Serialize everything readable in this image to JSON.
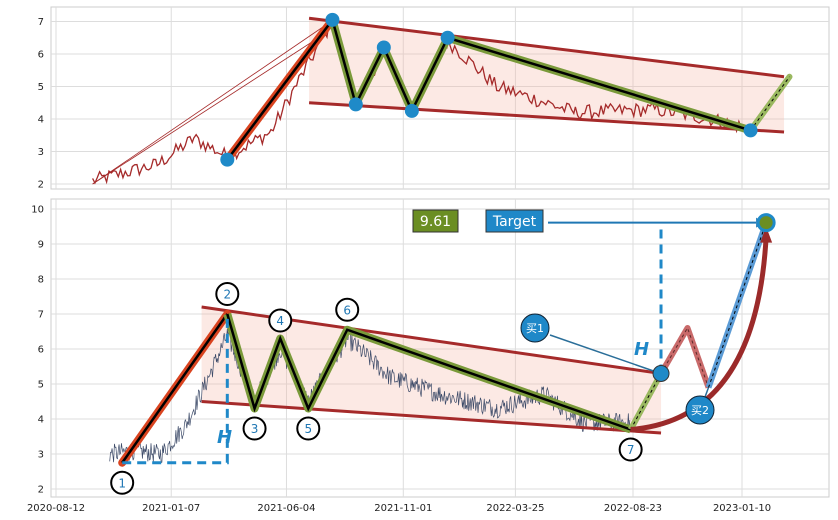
{
  "chart_data": [
    {
      "type": "line",
      "panel": "top",
      "ylim": [
        1.8,
        7.4
      ],
      "yticks": [
        2,
        3,
        4,
        5,
        6,
        7
      ],
      "grid": true,
      "pattern_points": [
        {
          "x": "2021-03-20",
          "y": 2.75
        },
        {
          "x": "2021-08-02",
          "y": 7.05
        },
        {
          "x": "2021-09-01",
          "y": 4.45
        },
        {
          "x": "2021-10-07",
          "y": 6.2
        },
        {
          "x": "2021-11-12",
          "y": 4.25
        },
        {
          "x": "2021-12-28",
          "y": 6.5
        },
        {
          "x": "2023-01-21",
          "y": 3.65
        }
      ],
      "projection_end": {
        "x": "2023-03-12",
        "y": 5.3
      },
      "channel_upper": [
        {
          "x": "2021-07-03",
          "y": 7.1
        },
        {
          "x": "2023-03-05",
          "y": 5.3
        }
      ],
      "channel_lower": [
        {
          "x": "2021-07-03",
          "y": 4.5
        },
        {
          "x": "2023-03-05",
          "y": 3.6
        }
      ]
    },
    {
      "type": "line",
      "panel": "bottom",
      "ylim": [
        1.8,
        10.2
      ],
      "yticks": [
        2,
        3,
        4,
        5,
        6,
        7,
        8,
        9,
        10
      ],
      "xticks": [
        "2020-08-12",
        "2021-01-07",
        "2021-06-04",
        "2021-11-01",
        "2022-03-25",
        "2022-08-23",
        "2023-01-10"
      ],
      "grid": true,
      "pattern_points": [
        {
          "label": "1",
          "x": "2020-11-05",
          "y": 2.75
        },
        {
          "label": "2",
          "x": "2021-03-20",
          "y": 7.0
        },
        {
          "label": "3",
          "x": "2021-04-24",
          "y": 4.3
        },
        {
          "label": "4",
          "x": "2021-05-27",
          "y": 6.3
        },
        {
          "label": "5",
          "x": "2021-07-02",
          "y": 4.3
        },
        {
          "label": "6",
          "x": "2021-08-21",
          "y": 6.55
        },
        {
          "label": "7",
          "x": "2022-08-20",
          "y": 3.7
        }
      ],
      "channel_upper": [
        {
          "x": "2021-02-15",
          "y": 7.2
        },
        {
          "x": "2022-09-28",
          "y": 5.3
        }
      ],
      "channel_lower": [
        {
          "x": "2021-02-15",
          "y": 4.5
        },
        {
          "x": "2022-09-28",
          "y": 3.6
        }
      ],
      "buy1": {
        "x": "2022-09-28",
        "y": 5.3
      },
      "target_point": {
        "x": "2023-02-10",
        "y": 9.61
      },
      "target_value": "9.61",
      "target_label": "Target",
      "h_label": "H",
      "buy_labels": [
        "买1",
        "买2"
      ]
    }
  ]
}
